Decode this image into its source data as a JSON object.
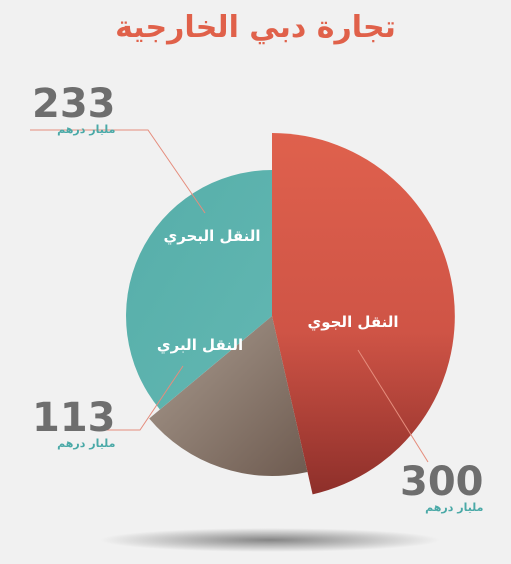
{
  "title": "تجارة دبي الخارجية",
  "chart_data": {
    "type": "pie",
    "title": "تجارة دبي الخارجية",
    "unit": "مليار درهم",
    "slices": [
      {
        "label": "النقل الجوي",
        "value": 300,
        "color": "#d9594a"
      },
      {
        "label": "النقل البري",
        "value": 113,
        "color": "#a89a8e"
      },
      {
        "label": "النقل البحري",
        "value": 233,
        "color": "#5eb3ae"
      }
    ]
  },
  "callouts": {
    "sea": {
      "value": "233",
      "unit": "مليار درهم"
    },
    "land": {
      "value": "113",
      "unit": "مليار درهم"
    },
    "air": {
      "value": "300",
      "unit": "مليار درهم"
    }
  }
}
